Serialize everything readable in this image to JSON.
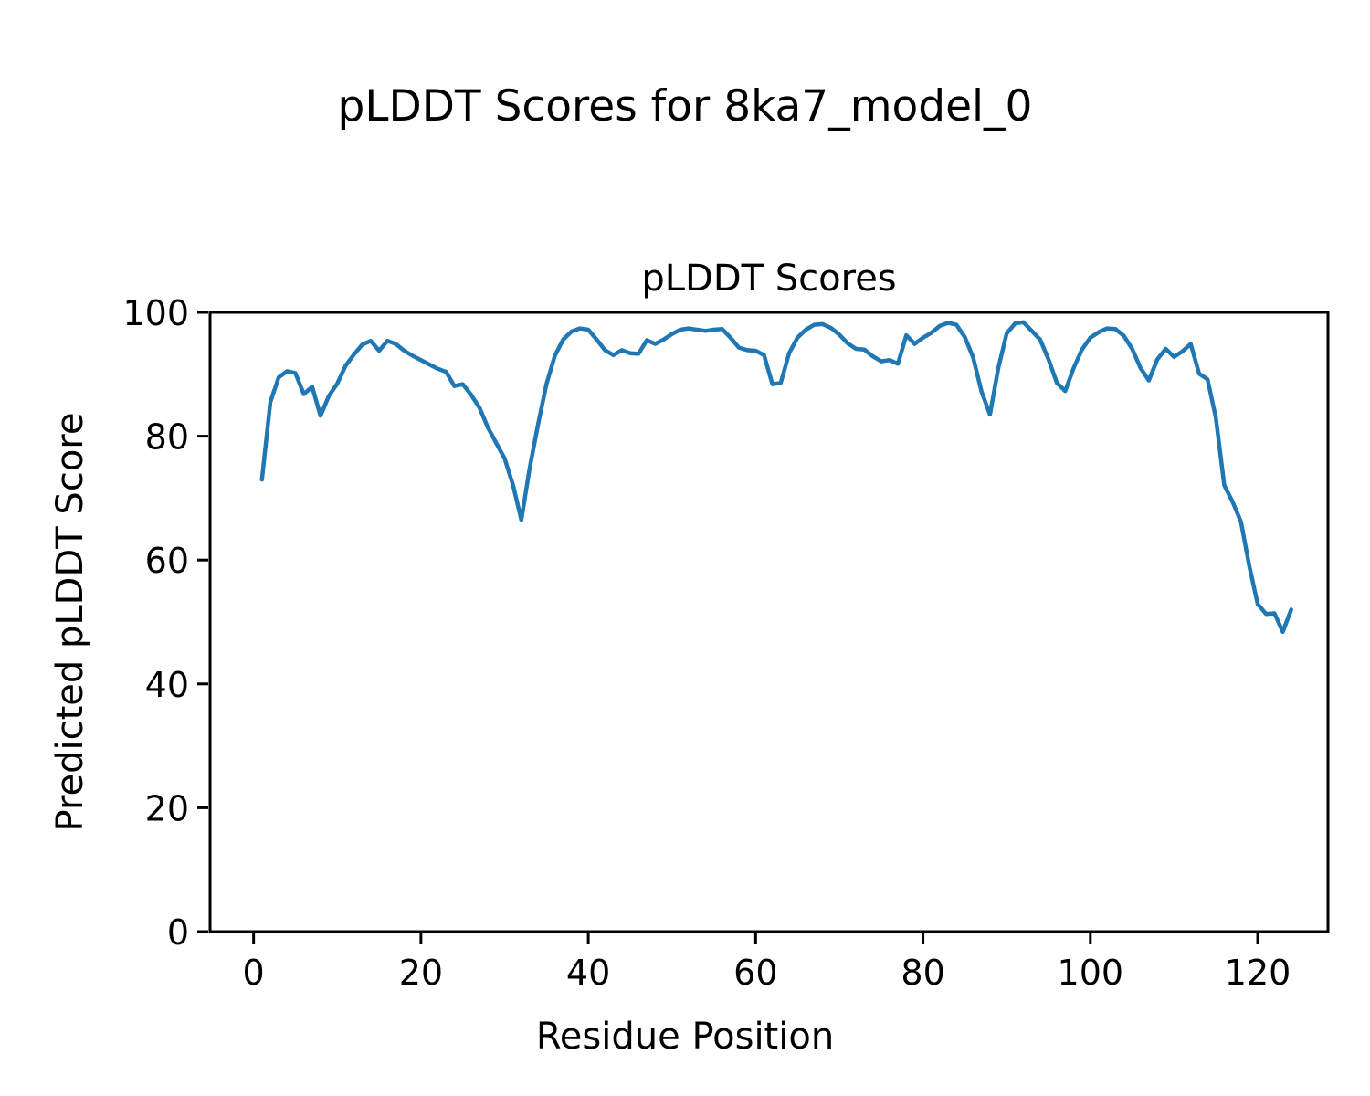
{
  "figure": {
    "suptitle": "pLDDT Scores for 8ka7_model_0"
  },
  "chart_data": {
    "type": "line",
    "title": "pLDDT Scores",
    "xlabel": "Residue Position",
    "ylabel": "Predicted pLDDT Score",
    "x_ticks": [
      0,
      20,
      40,
      60,
      80,
      100,
      120
    ],
    "y_ticks": [
      0,
      20,
      40,
      60,
      80,
      100
    ],
    "xlim": [
      -5.2,
      128.4
    ],
    "ylim": [
      0,
      100
    ],
    "grid": false,
    "legend_position": "none",
    "line_color": "#1f77b4",
    "line_width": 4.5,
    "axis_color": "#000000",
    "background_color": "#ffffff",
    "series": [
      {
        "name": "pLDDT",
        "x_start": 1,
        "x_step": 1,
        "values": [
          73.0,
          85.5,
          89.5,
          90.5,
          90.2,
          86.8,
          88.0,
          83.3,
          86.5,
          88.5,
          91.4,
          93.2,
          94.8,
          95.4,
          93.8,
          95.4,
          94.9,
          93.8,
          93.0,
          92.3,
          91.6,
          90.9,
          90.4,
          88.1,
          88.4,
          86.7,
          84.6,
          81.4,
          78.9,
          76.4,
          72.1,
          66.5,
          74.9,
          81.9,
          88.4,
          93.0,
          95.6,
          96.9,
          97.4,
          97.2,
          95.6,
          93.9,
          93.1,
          93.9,
          93.4,
          93.3,
          95.5,
          94.9,
          95.6,
          96.5,
          97.2,
          97.4,
          97.2,
          97.0,
          97.2,
          97.3,
          95.9,
          94.3,
          93.9,
          93.8,
          93.1,
          88.4,
          88.6,
          93.4,
          95.9,
          97.2,
          98.0,
          98.1,
          97.5,
          96.4,
          95.0,
          94.1,
          94.0,
          92.9,
          92.1,
          92.3,
          91.7,
          96.3,
          94.9,
          95.9,
          96.7,
          97.8,
          98.3,
          98.0,
          96.0,
          92.7,
          87.2,
          83.5,
          91.0,
          96.6,
          98.2,
          98.4,
          97.0,
          95.6,
          92.4,
          88.6,
          87.3,
          91.0,
          94.0,
          95.9,
          96.8,
          97.4,
          97.3,
          96.2,
          94.1,
          91.0,
          89.0,
          92.4,
          94.1,
          92.8,
          93.7,
          94.9,
          90.1,
          89.2,
          83.0,
          72.1,
          69.4,
          66.2,
          59.0,
          52.9,
          51.3,
          51.4,
          48.4,
          52.0
        ]
      }
    ]
  }
}
